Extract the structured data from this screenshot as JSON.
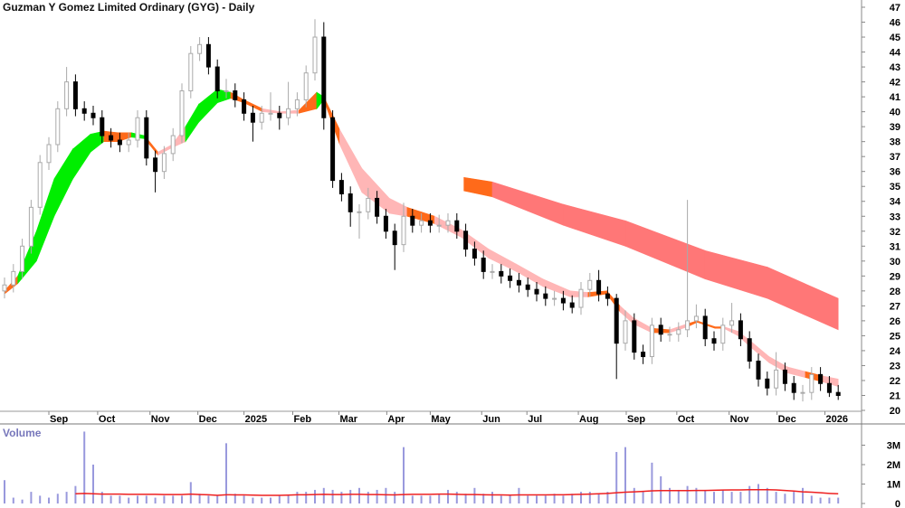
{
  "chart_data": {
    "type": "candlestick",
    "title": "Guzman Y Gomez Limited Ordinary (GYG) - Daily",
    "price_axis": {
      "ylim": [
        20,
        47
      ],
      "ticks": [
        20,
        21,
        22,
        23,
        24,
        25,
        26,
        27,
        28,
        29,
        30,
        31,
        32,
        33,
        34,
        35,
        36,
        37,
        38,
        39,
        40,
        41,
        42,
        43,
        44,
        45,
        46,
        47
      ]
    },
    "x_ticks": [
      {
        "label": "Sep",
        "bar": 5
      },
      {
        "label": "Oct",
        "bar": 10.5
      },
      {
        "label": "Nov",
        "bar": 16.4
      },
      {
        "label": "Dec",
        "bar": 21.8
      },
      {
        "label": "2025",
        "bar": 27
      },
      {
        "label": "Feb",
        "bar": 32.5
      },
      {
        "label": "Mar",
        "bar": 37.7
      },
      {
        "label": "Apr",
        "bar": 43.1
      },
      {
        "label": "May",
        "bar": 48
      },
      {
        "label": "Jun",
        "bar": 53.8
      },
      {
        "label": "Jul",
        "bar": 58.9
      },
      {
        "label": "Aug",
        "bar": 64.7
      },
      {
        "label": "Sep",
        "bar": 70.1
      },
      {
        "label": "Oct",
        "bar": 75.8
      },
      {
        "label": "Nov",
        "bar": 81.7
      },
      {
        "label": "Dec",
        "bar": 87.1
      },
      {
        "label": "2026",
        "bar": 92.5
      }
    ],
    "ohlc": [
      [
        28,
        28.9,
        27.5,
        28.4
      ],
      [
        28.4,
        29.8,
        27.9,
        29.3
      ],
      [
        29.3,
        31.5,
        28.8,
        31
      ],
      [
        31,
        34.1,
        30.5,
        33.6
      ],
      [
        33.6,
        37.1,
        33.1,
        36.6
      ],
      [
        36.6,
        38.3,
        36.1,
        37.8
      ],
      [
        37.8,
        40.7,
        37.3,
        40.2
      ],
      [
        40.2,
        43,
        39.7,
        42
      ],
      [
        42,
        42.5,
        39.7,
        40.2
      ],
      [
        40.2,
        40.7,
        39.4,
        39.9
      ],
      [
        39.9,
        40.4,
        39.1,
        39.6
      ],
      [
        39.6,
        40.1,
        37.9,
        38.4
      ],
      [
        38.4,
        38.9,
        37.6,
        38.1
      ],
      [
        38.1,
        38.6,
        37.3,
        37.8
      ],
      [
        37.8,
        38.6,
        37.3,
        38.1
      ],
      [
        38.1,
        40.1,
        37.6,
        39.6
      ],
      [
        39.6,
        40.1,
        36.4,
        36.9
      ],
      [
        36.9,
        37.4,
        34.6,
        36
      ],
      [
        36,
        37.7,
        35.5,
        37.2
      ],
      [
        37.2,
        38.9,
        36.7,
        38.4
      ],
      [
        38.4,
        41.9,
        37.9,
        41.4
      ],
      [
        41.4,
        44.4,
        40.9,
        43.9
      ],
      [
        43.9,
        45,
        43.4,
        44.5
      ],
      [
        44.5,
        45,
        42.5,
        43
      ],
      [
        43,
        43.5,
        40.9,
        41.4
      ],
      [
        41.4,
        42.2,
        40.9,
        41.4
      ],
      [
        41.4,
        41.9,
        40.3,
        40.8
      ],
      [
        40.8,
        41.3,
        39.4,
        39.9
      ],
      [
        39.9,
        40.4,
        38,
        39.3
      ],
      [
        39.3,
        40.4,
        38.8,
        39.9
      ],
      [
        39.9,
        41.3,
        39.4,
        39.9
      ],
      [
        39.9,
        40.4,
        38.8,
        39.6
      ],
      [
        39.6,
        42,
        39.1,
        40.2
      ],
      [
        40.2,
        41.3,
        39.7,
        40.8
      ],
      [
        40.8,
        43.1,
        40.3,
        42.6
      ],
      [
        42.6,
        46.2,
        42.1,
        45
      ],
      [
        45,
        46,
        38.8,
        39.6
      ],
      [
        39.6,
        40.1,
        34.9,
        35.4
      ],
      [
        35.4,
        35.9,
        34,
        34.5
      ],
      [
        34.5,
        35,
        32.3,
        33.3
      ],
      [
        33.3,
        33.8,
        31.5,
        33.3
      ],
      [
        33.3,
        34.9,
        32.8,
        34.2
      ],
      [
        34.2,
        34.7,
        32.5,
        33
      ],
      [
        33,
        33.5,
        31.5,
        32
      ],
      [
        32,
        32.5,
        29.4,
        31.1
      ],
      [
        31.1,
        33.9,
        30.6,
        33
      ],
      [
        33,
        33.5,
        31.9,
        32.4
      ],
      [
        32.4,
        33.2,
        31.9,
        32.7
      ],
      [
        32.7,
        33.2,
        31.9,
        32.4
      ],
      [
        32.4,
        33.1,
        31.9,
        32.4
      ],
      [
        32.4,
        33.2,
        31.9,
        32.7
      ],
      [
        32.7,
        33.2,
        31.5,
        32
      ],
      [
        32,
        32.5,
        30.3,
        30.8
      ],
      [
        30.8,
        31.3,
        29.7,
        30.2
      ],
      [
        30.2,
        30.7,
        28.8,
        29.3
      ],
      [
        29.3,
        29.8,
        28.8,
        29.3
      ],
      [
        29.3,
        29.8,
        28.5,
        29
      ],
      [
        29,
        29.5,
        28.2,
        28.7
      ],
      [
        28.7,
        29.2,
        27.9,
        28.4
      ],
      [
        28.4,
        28.9,
        27.6,
        28.1
      ],
      [
        28.1,
        28.6,
        27.3,
        27.8
      ],
      [
        27.8,
        28.3,
        27,
        27.5
      ],
      [
        27.5,
        28,
        27,
        27.5
      ],
      [
        27.5,
        28,
        26.7,
        27.2
      ],
      [
        27.2,
        27.7,
        26.5,
        26.9
      ],
      [
        26.9,
        28.6,
        26.4,
        28.1
      ],
      [
        28.1,
        29.2,
        27.6,
        28.7
      ],
      [
        28.7,
        29.4,
        27.3,
        27.8
      ],
      [
        27.8,
        28.3,
        27,
        27.5
      ],
      [
        27.5,
        27.8,
        22.1,
        24.5
      ],
      [
        24.5,
        26.7,
        24,
        26
      ],
      [
        26,
        26.5,
        23.4,
        23.9
      ],
      [
        23.9,
        24.4,
        23.1,
        23.6
      ],
      [
        23.6,
        26.2,
        23.1,
        25.7
      ],
      [
        25.7,
        26.2,
        24.6,
        25.1
      ],
      [
        25.1,
        25.6,
        24.6,
        25.1
      ],
      [
        25.1,
        25.9,
        24.6,
        25.4
      ],
      [
        25.4,
        34.1,
        24.9,
        26
      ],
      [
        26,
        27.1,
        25.5,
        26.3
      ],
      [
        26.3,
        26.8,
        24.3,
        24.8
      ],
      [
        24.8,
        25.3,
        24,
        24.5
      ],
      [
        24.5,
        26.2,
        24,
        25.7
      ],
      [
        25.7,
        27.2,
        25.2,
        26
      ],
      [
        26,
        26.5,
        24.3,
        24.8
      ],
      [
        24.8,
        25.3,
        22.8,
        23.3
      ],
      [
        23.3,
        23.8,
        21.6,
        22.1
      ],
      [
        22.1,
        22.6,
        21,
        21.5
      ],
      [
        21.5,
        23.9,
        21,
        22.7
      ],
      [
        22.7,
        23.2,
        21.3,
        21.8
      ],
      [
        21.8,
        22.3,
        20.7,
        21.2
      ],
      [
        21.2,
        21.7,
        20.6,
        21.2
      ],
      [
        21.2,
        22.9,
        20.7,
        22.4
      ],
      [
        22.4,
        22.9,
        21.3,
        21.8
      ],
      [
        21.8,
        22.3,
        20.9,
        21.2
      ],
      [
        21.2,
        21.7,
        20.7,
        21
      ]
    ],
    "short_band": [
      [
        0,
        28.0,
        27.8,
        "orange"
      ],
      [
        1.5,
        29.0,
        28.5,
        "green"
      ],
      [
        3.6,
        32,
        30,
        "green"
      ],
      [
        5.6,
        35.5,
        33,
        "green"
      ],
      [
        7.7,
        37.5,
        35.5,
        "green"
      ],
      [
        9.7,
        38.5,
        37.3,
        "green"
      ],
      [
        11.2,
        38.7,
        38.0,
        "orange"
      ],
      [
        12.8,
        38.6,
        38.0,
        "orange"
      ],
      [
        14.3,
        38.6,
        38.3,
        "green"
      ],
      [
        15.8,
        38.4,
        38.2,
        "orange"
      ],
      [
        17.3,
        37.3,
        37.1,
        "pink"
      ],
      [
        18.9,
        37.8,
        37.6,
        "pink"
      ],
      [
        20.4,
        39.0,
        38.0,
        "green"
      ],
      [
        21.9,
        40.5,
        39.3,
        "green"
      ],
      [
        24,
        41.5,
        40.6,
        "green"
      ],
      [
        25.5,
        41.3,
        40.9,
        "orange"
      ],
      [
        27,
        40.8,
        40.6,
        "orange"
      ],
      [
        29.1,
        40.2,
        40.0,
        "pink"
      ],
      [
        31.1,
        40.0,
        39.9,
        "pink"
      ],
      [
        33.2,
        40.1,
        39.9,
        "orange"
      ],
      [
        35.2,
        41.3,
        40.2,
        "green"
      ],
      [
        36,
        41.0,
        40.8,
        "orange"
      ],
      [
        37.8,
        38.8,
        37.8,
        "pink"
      ],
      [
        40.3,
        36.2,
        34.6,
        "pink"
      ],
      [
        43.4,
        34.2,
        33.2,
        "pink"
      ],
      [
        45.4,
        33.6,
        33.0,
        "orange"
      ],
      [
        48.5,
        33.0,
        32.5,
        "pink"
      ],
      [
        51.5,
        32.1,
        31.6,
        "pink"
      ],
      [
        54.6,
        30.8,
        30.2,
        "pink"
      ],
      [
        57.7,
        29.8,
        29.3,
        "pink"
      ],
      [
        60.7,
        28.8,
        28.3,
        "pink"
      ],
      [
        63.8,
        28.0,
        27.6,
        "pink"
      ],
      [
        65.8,
        27.9,
        27.6,
        "orange"
      ],
      [
        67.9,
        28.0,
        27.8,
        "orange"
      ],
      [
        69.4,
        27.0,
        26.6,
        "pink"
      ],
      [
        70.9,
        26.2,
        25.8,
        "pink"
      ],
      [
        73,
        25.5,
        25.2,
        "orange"
      ],
      [
        75,
        25.4,
        25.2,
        "pink"
      ],
      [
        77,
        25.8,
        25.6,
        "orange"
      ],
      [
        78.1,
        26.0,
        25.9,
        "orange"
      ],
      [
        80.1,
        25.6,
        25.5,
        "orange"
      ],
      [
        81.1,
        25.6,
        25.5,
        "pink"
      ],
      [
        82.7,
        25.3,
        25.0,
        "pink"
      ],
      [
        84.2,
        24.6,
        24.2,
        "pink"
      ],
      [
        86.2,
        23.6,
        23.2,
        "pink"
      ],
      [
        88.3,
        22.9,
        22.5,
        "pink"
      ],
      [
        90.3,
        22.6,
        22.2,
        "orange"
      ],
      [
        92.3,
        22.3,
        21.9,
        "pink"
      ],
      [
        94,
        22.1,
        21.6,
        "pink"
      ]
    ],
    "long_band": [
      [
        51.8,
        35.6,
        34.7,
        "orange"
      ],
      [
        55,
        35.3,
        34.3,
        "red"
      ],
      [
        63,
        33.8,
        32.4,
        "red"
      ],
      [
        70,
        32.7,
        31.0,
        "red"
      ],
      [
        79,
        30.7,
        28.8,
        "red"
      ],
      [
        86,
        29.6,
        27.5,
        "red"
      ],
      [
        94,
        27.5,
        25.4,
        "red"
      ]
    ],
    "colors": {
      "up_candle": "#aaaaaa",
      "down_candle": "#000000",
      "green": "#00ee00",
      "orange": "#ff6a1a",
      "pink": "#ffb6b6",
      "red": "#ff7777",
      "volume": "#9999dd",
      "volume_ma": "#ee2020"
    },
    "volume_panel": {
      "label": "Volume",
      "ticks": [
        {
          "v": 0,
          "label": "0"
        },
        {
          "v": 1,
          "label": "1M"
        },
        {
          "v": 2,
          "label": "2M"
        },
        {
          "v": 3,
          "label": "3M"
        }
      ],
      "unit": "M",
      "values": [
        1.2,
        0.3,
        0.2,
        0.6,
        0.4,
        0.3,
        0.5,
        0.6,
        0.9,
        3.7,
        2.0,
        0.6,
        0.4,
        0.4,
        0.3,
        0.4,
        0.4,
        0.3,
        0.4,
        0.4,
        0.4,
        1.1,
        0.5,
        0.4,
        0.4,
        3.1,
        0.5,
        0.4,
        0.3,
        0.3,
        0.3,
        0.4,
        0.4,
        0.6,
        0.6,
        0.7,
        0.8,
        0.7,
        0.6,
        0.7,
        0.8,
        0.6,
        0.7,
        0.8,
        0.6,
        2.9,
        0.4,
        0.4,
        0.4,
        0.5,
        0.7,
        0.6,
        0.5,
        0.8,
        0.5,
        0.6,
        0.4,
        0.4,
        0.8,
        0.4,
        0.4,
        0.4,
        0.5,
        0.4,
        0.5,
        0.6,
        0.6,
        0.5,
        0.6,
        2.65,
        2.9,
        0.8,
        0.6,
        2.1,
        1.4,
        0.8,
        0.7,
        0.9,
        0.8,
        0.7,
        0.6,
        0.7,
        0.6,
        0.6,
        0.9,
        1.0,
        0.8,
        0.6,
        0.5,
        0.6,
        0.8,
        0.4,
        0.3,
        0.3,
        0.3
      ],
      "ma": [
        null,
        null,
        null,
        null,
        null,
        null,
        null,
        null,
        0.5,
        0.52,
        0.5,
        0.48,
        0.48,
        0.48,
        0.47,
        0.47,
        0.47,
        0.47,
        0.46,
        0.46,
        0.46,
        0.48,
        0.46,
        0.45,
        0.42,
        0.45,
        0.44,
        0.44,
        0.43,
        0.42,
        0.42,
        0.42,
        0.43,
        0.45,
        0.45,
        0.46,
        0.47,
        0.46,
        0.46,
        0.47,
        0.47,
        0.46,
        0.46,
        0.45,
        0.44,
        0.46,
        0.47,
        0.47,
        0.47,
        0.48,
        0.48,
        0.47,
        0.46,
        0.46,
        0.45,
        0.44,
        0.44,
        0.43,
        0.44,
        0.44,
        0.44,
        0.44,
        0.45,
        0.45,
        0.46,
        0.47,
        0.48,
        0.5,
        0.52,
        0.55,
        0.58,
        0.6,
        0.62,
        0.65,
        0.66,
        0.66,
        0.66,
        0.66,
        0.67,
        0.67,
        0.68,
        0.69,
        0.7,
        0.7,
        0.71,
        0.71,
        0.71,
        0.7,
        0.67,
        0.64,
        0.6,
        0.58,
        0.55,
        0.52,
        0.5
      ]
    }
  }
}
